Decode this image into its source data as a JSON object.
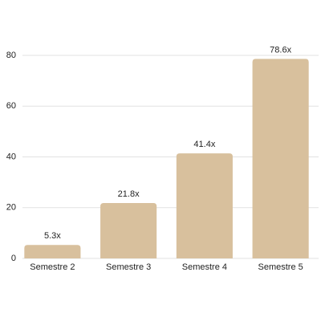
{
  "chart_data": {
    "type": "bar",
    "categories": [
      "Semestre 2",
      "Semestre 3",
      "Semestre 4",
      "Semestre 5"
    ],
    "values": [
      5.3,
      21.8,
      41.4,
      78.6
    ],
    "value_labels": [
      "5.3x",
      "21.8x",
      "41.4x",
      "78.6x"
    ],
    "color": "#d8c09d",
    "ylim": [
      0,
      80
    ],
    "yticks": [
      0,
      20,
      40,
      60,
      80
    ],
    "grid": true
  }
}
